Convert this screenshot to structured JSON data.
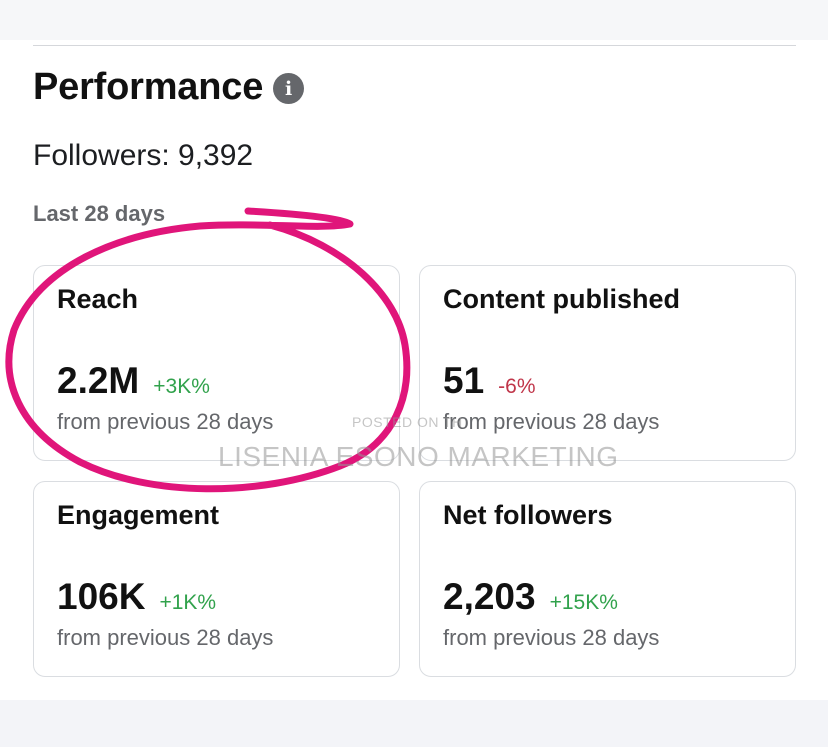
{
  "header": {
    "title": "Performance",
    "info_icon": "info-icon"
  },
  "followers_text": "Followers: 9,392",
  "period_label": "Last 28 days",
  "cards": [
    {
      "title": "Reach",
      "value": "2.2M",
      "change": "+3K%",
      "trend": "up",
      "sub": "from previous 28 days"
    },
    {
      "title": "Content published",
      "value": "51",
      "change": "-6%",
      "trend": "down",
      "sub": "from previous 28 days"
    },
    {
      "title": "Engagement",
      "value": "106K",
      "change": "+1K%",
      "trend": "up",
      "sub": "from previous 28 days"
    },
    {
      "title": "Net followers",
      "value": "2,203",
      "change": "+15K%",
      "trend": "up",
      "sub": "from previous 28 days"
    }
  ],
  "watermark": {
    "small": "POSTED ON TH",
    "large": "LISENIA ESONO MARKETING"
  },
  "colors": {
    "positive": "#31a24c",
    "negative": "#c0364a",
    "annotation": "#e0157a"
  }
}
